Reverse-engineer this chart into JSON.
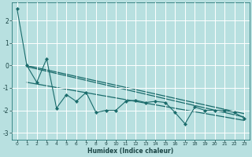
{
  "xlabel": "Humidex (Indice chaleur)",
  "background_color": "#b8e0e0",
  "grid_color": "#d8f0f0",
  "line_color": "#1a6b6b",
  "xlim": [
    -0.5,
    23.5
  ],
  "ylim": [
    -3.3,
    2.8
  ],
  "yticks": [
    -3,
    -2,
    -1,
    0,
    1,
    2
  ],
  "xticks": [
    0,
    1,
    2,
    3,
    4,
    5,
    6,
    7,
    8,
    9,
    10,
    11,
    12,
    13,
    14,
    15,
    16,
    17,
    18,
    19,
    20,
    21,
    22,
    23
  ],
  "jagged_x": [
    0,
    1,
    2,
    3,
    4,
    5,
    6,
    7,
    8,
    9,
    10,
    11,
    12,
    13,
    14,
    15,
    16,
    17,
    18,
    19,
    20,
    21,
    22,
    23
  ],
  "jagged_y": [
    2.55,
    0.0,
    -0.75,
    0.3,
    -1.9,
    -1.3,
    -1.6,
    -1.2,
    -2.1,
    -2.0,
    -2.0,
    -1.6,
    -1.55,
    -1.65,
    -1.6,
    -1.65,
    -2.1,
    -2.6,
    -1.85,
    -2.0,
    -2.0,
    -2.0,
    -2.1,
    -2.35
  ],
  "trend1_x": [
    1,
    23
  ],
  "trend1_y": [
    0.0,
    -2.15
  ],
  "trend2_x": [
    1,
    23
  ],
  "trend2_y": [
    -0.75,
    -2.45
  ],
  "trend3_x": [
    1,
    23
  ],
  "trend3_y": [
    -0.05,
    -2.3
  ]
}
